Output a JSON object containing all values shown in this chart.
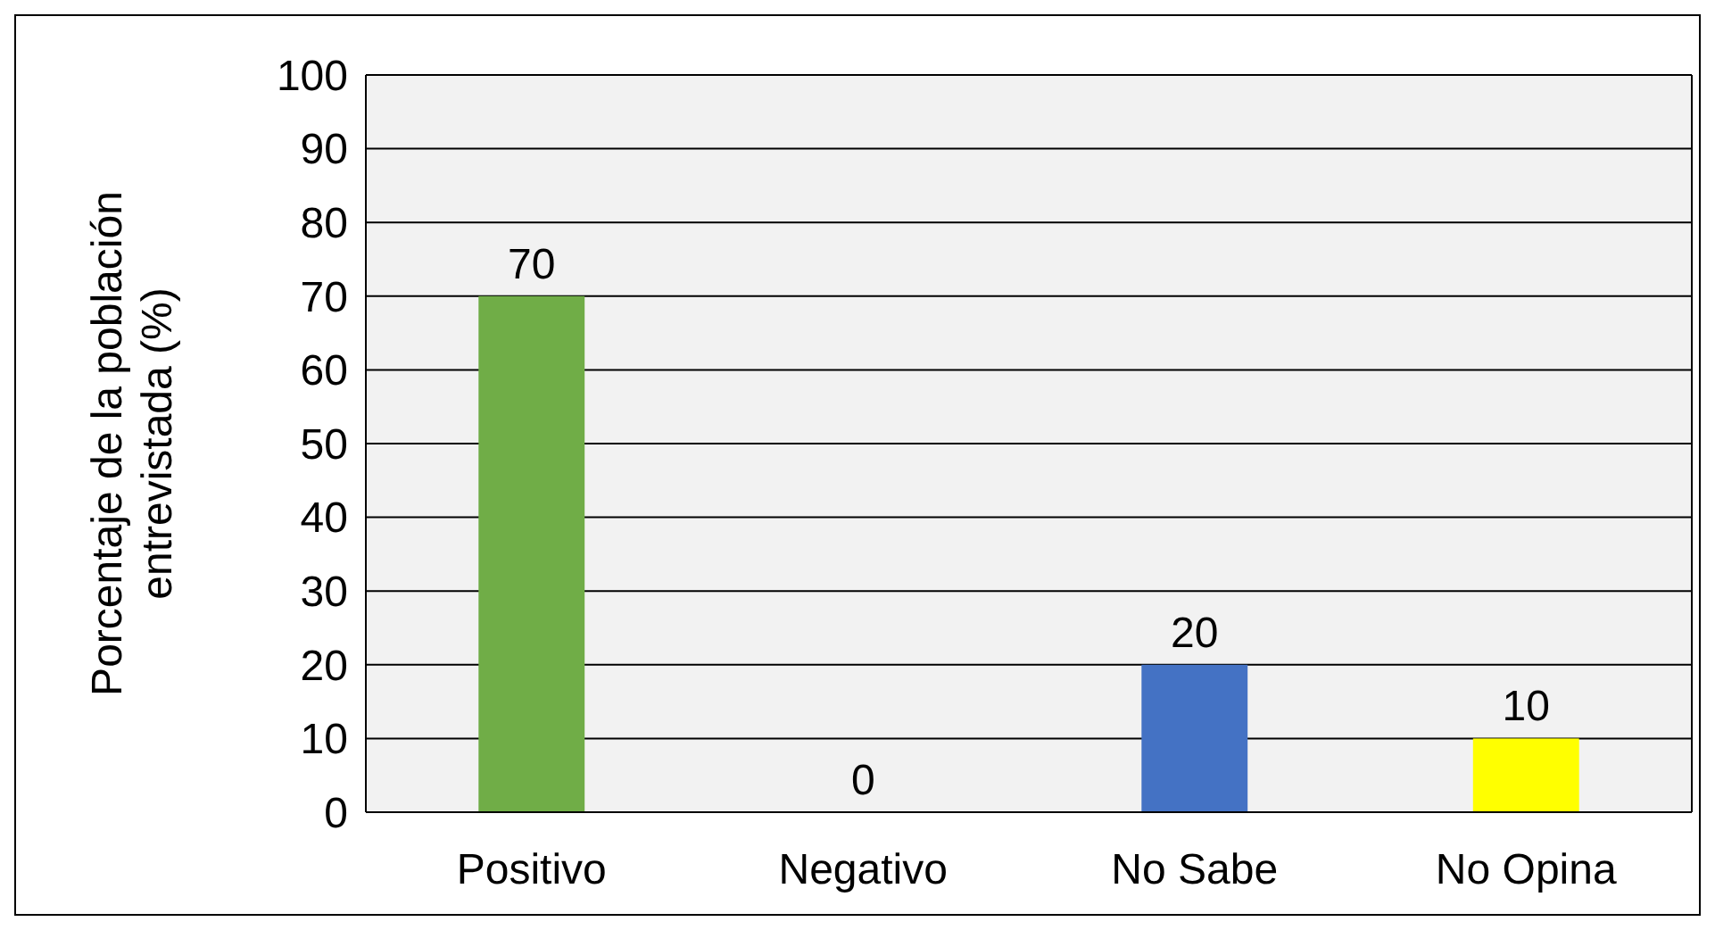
{
  "chart_data": {
    "type": "bar",
    "ylabel": "Porcentaje de la población entrevistada (%)",
    "categories": [
      "Positivo",
      "Negativo",
      "No Sabe",
      "No Opina"
    ],
    "values": [
      70,
      0,
      20,
      10
    ],
    "colors": [
      "#70ad47",
      "#ed7d31",
      "#4472c4",
      "#ffff00"
    ],
    "ylim": [
      0,
      100
    ],
    "yticks": [
      0,
      10,
      20,
      30,
      40,
      50,
      60,
      70,
      80,
      90,
      100
    ],
    "grid": "y",
    "data_labels": true
  }
}
